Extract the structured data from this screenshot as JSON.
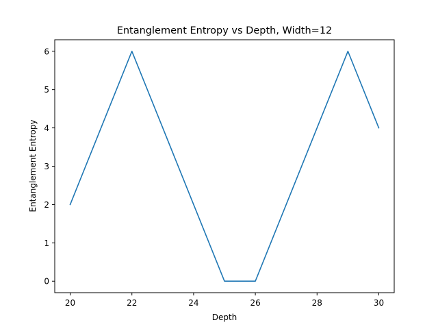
{
  "chart_data": {
    "type": "line",
    "title": "Entanglement Entropy vs Depth, Width=12",
    "xlabel": "Depth",
    "ylabel": "Entanglement Entropy",
    "xlim": [
      19.5,
      30.5
    ],
    "ylim": [
      -0.3,
      6.3
    ],
    "xticks": [
      20,
      22,
      24,
      26,
      28,
      30
    ],
    "yticks": [
      0,
      1,
      2,
      3,
      4,
      5,
      6
    ],
    "grid": false,
    "series": [
      {
        "color": "#1f77b4",
        "x": [
          20,
          21,
          22,
          23,
          24,
          25,
          26,
          27,
          28,
          29,
          30
        ],
        "y": [
          2,
          4,
          6,
          4,
          2,
          0,
          0,
          2,
          4,
          6,
          4
        ]
      }
    ]
  }
}
